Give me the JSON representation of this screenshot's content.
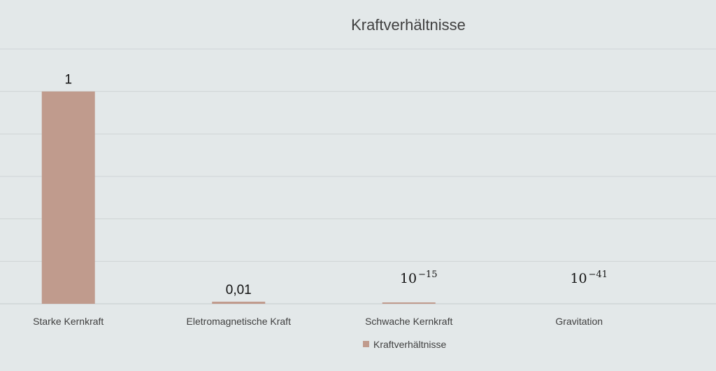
{
  "chart_data": {
    "type": "bar",
    "title": "Kraftverhältnisse",
    "categories": [
      "Starke Kernkraft",
      "Eletromagnetische Kraft",
      "Schwache Kernkraft",
      "Gravitation"
    ],
    "series": [
      {
        "name": "Kraftverhältnisse",
        "values": [
          1,
          0.01,
          1e-15,
          1e-41
        ],
        "data_labels": [
          {
            "base": "1",
            "exp": ""
          },
          {
            "base": "0,01",
            "exp": ""
          },
          {
            "base": "10",
            "exp": "−15"
          },
          {
            "base": "10",
            "exp": "−41"
          }
        ]
      }
    ],
    "ylim": [
      0,
      1.2
    ],
    "gridlines": true,
    "legend_position": "bottom",
    "bar_color": "#c09b8d"
  }
}
